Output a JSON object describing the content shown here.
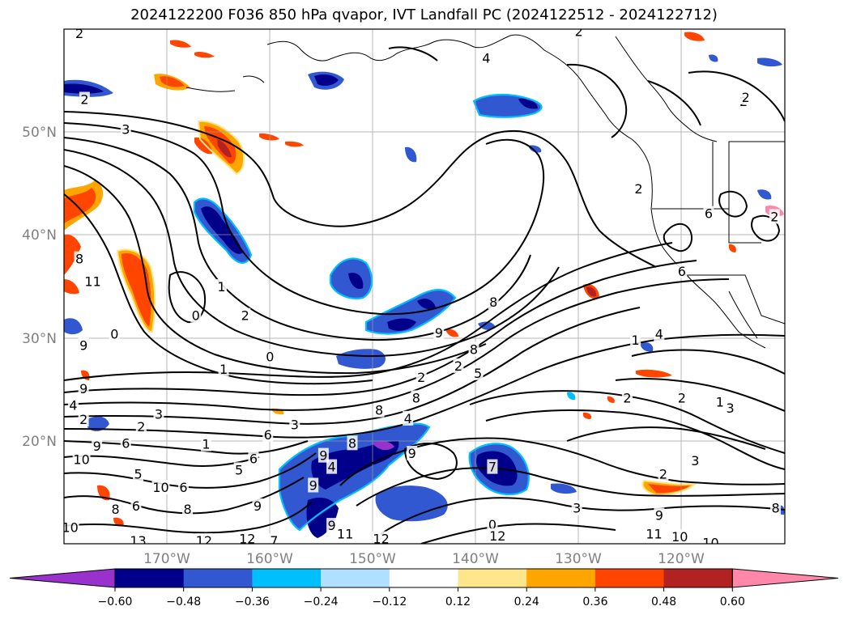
{
  "title": "2024122200 F036 850 hPa qvapor, IVT Landfall PC (2024122512 - 2024122712)",
  "map": {
    "lon_range": [
      -180,
      -110
    ],
    "lat_range": [
      10,
      60
    ],
    "lat_ticks": [
      "50°N",
      "40°N",
      "30°N",
      "20°N"
    ],
    "lon_ticks": [
      "170°W",
      "160°W",
      "150°W",
      "140°W",
      "130°W",
      "120°W"
    ],
    "gridlines": true,
    "coastlines": true,
    "borders": true
  },
  "contour_labels": [
    {
      "text": "4",
      "lon": -139,
      "lat": 57.2
    },
    {
      "text": "2",
      "lon": -178.5,
      "lat": 59.6
    },
    {
      "text": "2",
      "lon": -178,
      "lat": 53.2
    },
    {
      "text": "3",
      "lon": -174,
      "lat": 50.3
    },
    {
      "text": "2",
      "lon": -130,
      "lat": 59.8
    },
    {
      "text": "2",
      "lon": -114,
      "lat": 53
    },
    {
      "text": "2",
      "lon": -124.2,
      "lat": 44.5
    },
    {
      "text": "6",
      "lon": -117.4,
      "lat": 42.1
    },
    {
      "text": "6",
      "lon": -120,
      "lat": 36.5
    },
    {
      "text": "1",
      "lon": -164.7,
      "lat": 35
    },
    {
      "text": "0",
      "lon": -167.2,
      "lat": 32.2
    },
    {
      "text": "2",
      "lon": -162.4,
      "lat": 32.2
    },
    {
      "text": "0",
      "lon": -160,
      "lat": 28.2
    },
    {
      "text": "1",
      "lon": -164.5,
      "lat": 27
    },
    {
      "text": "0",
      "lon": -175.1,
      "lat": 30.4
    },
    {
      "text": "11",
      "lon": -177.2,
      "lat": 35.5
    },
    {
      "text": "8",
      "lon": -178.5,
      "lat": 37.7
    },
    {
      "text": "9",
      "lon": -178.1,
      "lat": 29.3
    },
    {
      "text": "9",
      "lon": -178.1,
      "lat": 25.1
    },
    {
      "text": "4",
      "lon": -179.1,
      "lat": 23.5
    },
    {
      "text": "2",
      "lon": -178.1,
      "lat": 22.1
    },
    {
      "text": "3",
      "lon": -170.8,
      "lat": 22.6
    },
    {
      "text": "2",
      "lon": -172.5,
      "lat": 21.4
    },
    {
      "text": "6",
      "lon": -174,
      "lat": 19.8
    },
    {
      "text": "9",
      "lon": -176.8,
      "lat": 19.5
    },
    {
      "text": "10",
      "lon": -178.3,
      "lat": 18.2
    },
    {
      "text": "1",
      "lon": -166.2,
      "lat": 19.7
    },
    {
      "text": "6",
      "lon": -160.2,
      "lat": 20.6
    },
    {
      "text": "3",
      "lon": -157.6,
      "lat": 21.6
    },
    {
      "text": "8",
      "lon": -152,
      "lat": 19.8
    },
    {
      "text": "4",
      "lon": -154,
      "lat": 17.5
    },
    {
      "text": "5",
      "lon": -163,
      "lat": 17.2
    },
    {
      "text": "6",
      "lon": -161.6,
      "lat": 18.3
    },
    {
      "text": "10",
      "lon": -170.6,
      "lat": 15.5
    },
    {
      "text": "6",
      "lon": -168.4,
      "lat": 15.5
    },
    {
      "text": "5",
      "lon": -172.8,
      "lat": 16.8
    },
    {
      "text": "8",
      "lon": -175,
      "lat": 13.4
    },
    {
      "text": "6",
      "lon": -173,
      "lat": 13.7
    },
    {
      "text": "8",
      "lon": -168,
      "lat": 13.4
    },
    {
      "text": "9",
      "lon": -161.2,
      "lat": 13.7
    },
    {
      "text": "9",
      "lon": -155.8,
      "lat": 15.7
    },
    {
      "text": "9",
      "lon": -154.8,
      "lat": 18.6
    },
    {
      "text": "10",
      "lon": -179.4,
      "lat": 11.6
    },
    {
      "text": "13",
      "lon": -172.8,
      "lat": 10.3
    },
    {
      "text": "12",
      "lon": -166.4,
      "lat": 10.3
    },
    {
      "text": "12",
      "lon": -162.2,
      "lat": 10.5
    },
    {
      "text": "11",
      "lon": -152.7,
      "lat": 11
    },
    {
      "text": "12",
      "lon": -149.2,
      "lat": 10.5
    },
    {
      "text": "9",
      "lon": -154,
      "lat": 11.8
    },
    {
      "text": "7",
      "lon": -159.6,
      "lat": 10.3
    },
    {
      "text": "8",
      "lon": -149.4,
      "lat": 23
    },
    {
      "text": "8",
      "lon": -145.8,
      "lat": 24.2
    },
    {
      "text": "4",
      "lon": -146.6,
      "lat": 22.2
    },
    {
      "text": "9",
      "lon": -143.6,
      "lat": 30.5
    },
    {
      "text": "8",
      "lon": -138.3,
      "lat": 33.5
    },
    {
      "text": "8",
      "lon": -140.2,
      "lat": 28.9
    },
    {
      "text": "2",
      "lon": -141.7,
      "lat": 27.3
    },
    {
      "text": "2",
      "lon": -145.3,
      "lat": 26.2
    },
    {
      "text": "5",
      "lon": -139.8,
      "lat": 26.6
    },
    {
      "text": "9",
      "lon": -146.2,
      "lat": 18.8
    },
    {
      "text": "7",
      "lon": -138.4,
      "lat": 17.5
    },
    {
      "text": "0",
      "lon": -138.4,
      "lat": 11.9
    },
    {
      "text": "12",
      "lon": -137.9,
      "lat": 10.8
    },
    {
      "text": "3",
      "lon": -130.2,
      "lat": 13.5
    },
    {
      "text": "2",
      "lon": -125.3,
      "lat": 24.2
    },
    {
      "text": "2",
      "lon": -120,
      "lat": 24.2
    },
    {
      "text": "1",
      "lon": -116.3,
      "lat": 23.8
    },
    {
      "text": "3",
      "lon": -115.3,
      "lat": 23.2
    },
    {
      "text": "3",
      "lon": -118.7,
      "lat": 18.1
    },
    {
      "text": "2",
      "lon": -121.8,
      "lat": 16.8
    },
    {
      "text": "1",
      "lon": -124.5,
      "lat": 29.8
    },
    {
      "text": "4",
      "lon": -122.2,
      "lat": 30.4
    },
    {
      "text": "10",
      "lon": -120.2,
      "lat": 10.7
    },
    {
      "text": "10",
      "lon": -117.2,
      "lat": 10.1
    },
    {
      "text": "11",
      "lon": -122.7,
      "lat": 11
    },
    {
      "text": "9",
      "lon": -122.2,
      "lat": 12.8
    },
    {
      "text": "8",
      "lon": -110.9,
      "lat": 13.5
    },
    {
      "text": "2",
      "lon": -113.8,
      "lat": 53.4
    },
    {
      "text": "2",
      "lon": -111,
      "lat": 41.8
    }
  ],
  "colorbar": {
    "ticks": [
      "−0.60",
      "−0.48",
      "−0.36",
      "−0.24",
      "−0.12",
      "0.12",
      "0.24",
      "0.36",
      "0.48",
      "0.60"
    ],
    "colors": [
      "#9932cc",
      "#00008b",
      "#3158d0",
      "#00bfff",
      "#b0e0ff",
      "#ffffff",
      "#ffe68c",
      "#ffa500",
      "#ff4500",
      "#b22222",
      "#ff88aa"
    ],
    "extend": "both"
  }
}
